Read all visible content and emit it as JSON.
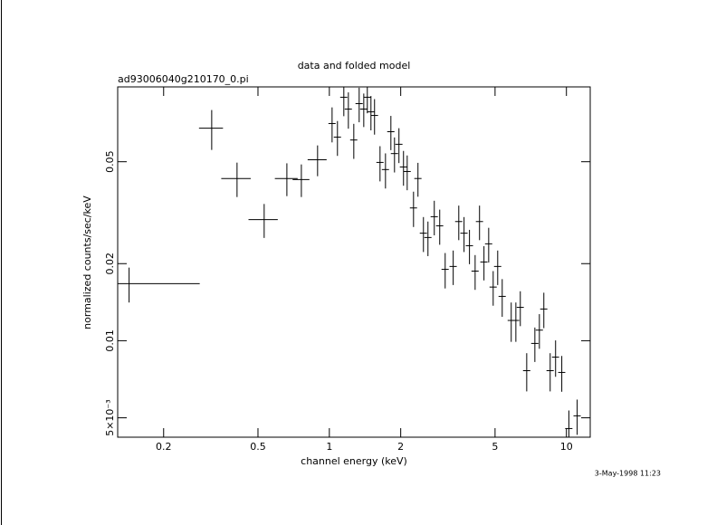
{
  "chart_data": {
    "type": "scatter",
    "title": "data and folded model",
    "subtitle": "ad93006040g210170_0.pi",
    "xlabel": "channel energy (keV)",
    "ylabel": "normalized counts/sec/keV",
    "timestamp": "3-May-1998 11:23",
    "xscale": "log",
    "yscale": "log",
    "xlim": [
      0.128,
      12.6
    ],
    "ylim": [
      0.0042,
      0.098
    ],
    "xticks": [
      0.2,
      0.5,
      1,
      2,
      5,
      10
    ],
    "yticks": [
      {
        "value": 0.005,
        "label": "5×10⁻³"
      },
      0.01,
      0.02,
      0.05
    ],
    "color": "#000000",
    "x": [
      0.143,
      0.319,
      0.408,
      0.531,
      0.662,
      0.762,
      0.892,
      1.027,
      1.082,
      1.151,
      1.203,
      1.268,
      1.336,
      1.397,
      1.446,
      1.498,
      1.551,
      1.636,
      1.725,
      1.818,
      1.883,
      1.966,
      2.055,
      2.13,
      2.265,
      2.365,
      2.494,
      2.606,
      2.771,
      2.921,
      3.08,
      3.33,
      3.515,
      3.7,
      3.9,
      4.12,
      4.3,
      4.49,
      4.7,
      4.91,
      5.13,
      5.36,
      5.85,
      6.12,
      6.39,
      6.8,
      7.36,
      7.69,
      8.03,
      8.54,
      9.0,
      9.56,
      10.24,
      11.1
    ],
    "xerr": [
      0.141,
      0.037,
      0.058,
      0.075,
      0.073,
      0.062,
      0.082,
      0.036,
      0.038,
      0.04,
      0.042,
      0.044,
      0.047,
      0.049,
      0.051,
      0.052,
      0.054,
      0.057,
      0.06,
      0.064,
      0.066,
      0.069,
      0.072,
      0.075,
      0.079,
      0.083,
      0.087,
      0.091,
      0.097,
      0.102,
      0.108,
      0.117,
      0.123,
      0.13,
      0.137,
      0.144,
      0.15,
      0.157,
      0.165,
      0.172,
      0.18,
      0.188,
      0.2,
      0.21,
      0.22,
      0.24,
      0.26,
      0.27,
      0.28,
      0.3,
      0.31,
      0.33,
      0.36,
      0.39
    ],
    "values": [
      0.0167,
      0.0676,
      0.043,
      0.0297,
      0.043,
      0.0426,
      0.0509,
      0.0705,
      0.0624,
      0.0893,
      0.0803,
      0.0608,
      0.0843,
      0.0803,
      0.0893,
      0.0783,
      0.0758,
      0.0497,
      0.0466,
      0.0655,
      0.0538,
      0.0585,
      0.0477,
      0.0458,
      0.033,
      0.043,
      0.0263,
      0.0253,
      0.0305,
      0.0281,
      0.019,
      0.0195,
      0.0292,
      0.0263,
      0.0235,
      0.0187,
      0.0292,
      0.0203,
      0.0239,
      0.0162,
      0.0195,
      0.0149,
      0.012,
      0.012,
      0.0135,
      0.00764,
      0.00976,
      0.011,
      0.0133,
      0.00764,
      0.00863,
      0.00752,
      0.00454,
      0.00509
    ],
    "yerr": [
      0.0026,
      0.012,
      0.0066,
      0.0045,
      0.0063,
      0.0062,
      0.007,
      0.011,
      0.0097,
      0.014,
      0.013,
      0.0095,
      0.013,
      0.012,
      0.012,
      0.012,
      0.012,
      0.0078,
      0.0073,
      0.01,
      0.0084,
      0.0091,
      0.0074,
      0.0071,
      0.0052,
      0.0065,
      0.0041,
      0.0039,
      0.0047,
      0.0044,
      0.003,
      0.003,
      0.0045,
      0.0041,
      0.0036,
      0.0029,
      0.0045,
      0.0031,
      0.0037,
      0.0025,
      0.003,
      0.0025,
      0.0021,
      0.0021,
      0.0021,
      0.0013,
      0.0015,
      0.0017,
      0.0021,
      0.0013,
      0.0014,
      0.0012,
      0.0008,
      0.0008
    ]
  }
}
